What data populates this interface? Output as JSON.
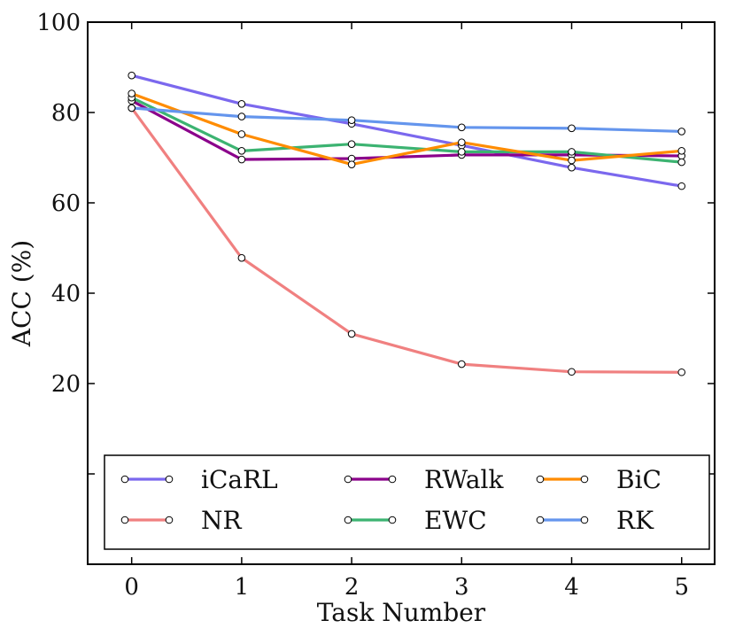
{
  "chart_data": {
    "type": "line",
    "xlabel": "Task Number",
    "ylabel": "ACC (%)",
    "x": [
      0,
      1,
      2,
      3,
      4,
      5
    ],
    "xlim": [
      -0.4,
      5.3
    ],
    "ylim": [
      -20,
      100
    ],
    "xticks": [
      "0",
      "1",
      "2",
      "3",
      "4",
      "5"
    ],
    "yticks": [
      "20",
      "40",
      "60",
      "80",
      "100"
    ],
    "grid": false,
    "legend_position": "bottom-center",
    "series": [
      {
        "name": "iCaRL",
        "color": "#7b68ee",
        "values": [
          88.2,
          81.9,
          77.5,
          72.7,
          67.8,
          63.7
        ]
      },
      {
        "name": "NR",
        "color": "#f08080",
        "values": [
          81.0,
          47.8,
          31.0,
          24.3,
          22.6,
          22.5
        ]
      },
      {
        "name": "RWalk",
        "color": "#8b008b",
        "values": [
          82.6,
          69.6,
          69.8,
          70.6,
          70.6,
          70.4
        ]
      },
      {
        "name": "EWC",
        "color": "#3cb371",
        "values": [
          83.3,
          71.5,
          73.0,
          71.3,
          71.3,
          69.0
        ]
      },
      {
        "name": "BiC",
        "color": "#ff8c00",
        "values": [
          84.2,
          75.2,
          68.5,
          73.4,
          69.4,
          71.5
        ]
      },
      {
        "name": "RK",
        "color": "#6495ed",
        "values": [
          81.0,
          79.1,
          78.3,
          76.7,
          76.5,
          75.8
        ]
      }
    ]
  }
}
